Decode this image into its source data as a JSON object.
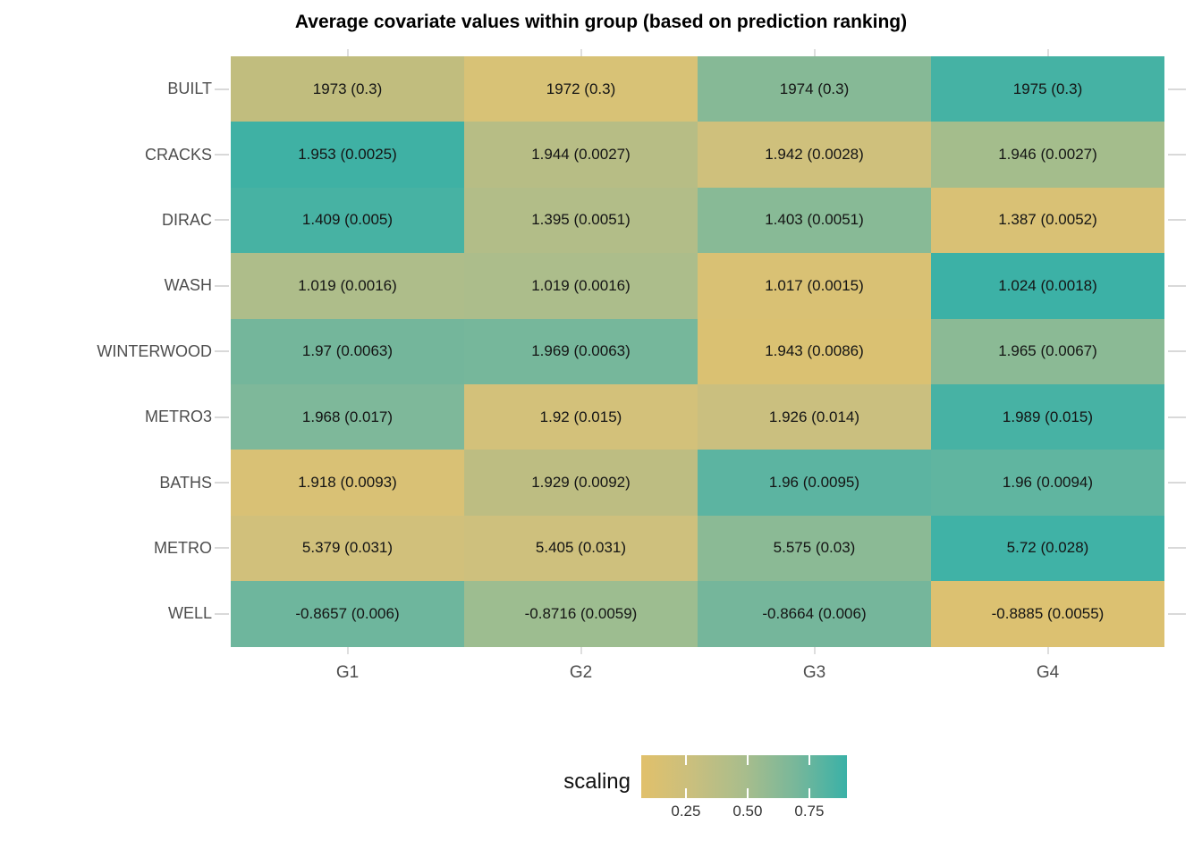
{
  "chart_data": {
    "type": "heatmap",
    "title": "Average covariate values within group (based on prediction ranking)",
    "x_categories": [
      "G1",
      "G2",
      "G3",
      "G4"
    ],
    "y_categories": [
      "BUILT",
      "CRACKS",
      "DIRAC",
      "WASH",
      "WINTERWOOD",
      "METRO3",
      "BATHS",
      "METRO",
      "WELL"
    ],
    "cell_label_format": "mean (se)",
    "rows": [
      {
        "name": "BUILT",
        "cells": [
          {
            "label": "1973 (0.3)",
            "color": "#c1bd7e"
          },
          {
            "label": "1972 (0.3)",
            "color": "#d8c276"
          },
          {
            "label": "1974 (0.3)",
            "color": "#86b996"
          },
          {
            "label": "1975 (0.3)",
            "color": "#45b2a4"
          }
        ]
      },
      {
        "name": "CRACKS",
        "cells": [
          {
            "label": "1.953 (0.0025)",
            "color": "#3fb1a4"
          },
          {
            "label": "1.944 (0.0027)",
            "color": "#b7bd85"
          },
          {
            "label": "1.942 (0.0028)",
            "color": "#cfc07c"
          },
          {
            "label": "1.946 (0.0027)",
            "color": "#a4bd8c"
          }
        ]
      },
      {
        "name": "DIRAC",
        "cells": [
          {
            "label": "1.409 (0.005)",
            "color": "#47b2a3"
          },
          {
            "label": "1.395 (0.0051)",
            "color": "#b2bd88"
          },
          {
            "label": "1.403 (0.0051)",
            "color": "#88ba96"
          },
          {
            "label": "1.387 (0.0052)",
            "color": "#d9c175"
          }
        ]
      },
      {
        "name": "WASH",
        "cells": [
          {
            "label": "1.019 (0.0016)",
            "color": "#aebd8a"
          },
          {
            "label": "1.019 (0.0016)",
            "color": "#acbd8b"
          },
          {
            "label": "1.017 (0.0015)",
            "color": "#d9c174"
          },
          {
            "label": "1.024 (0.0018)",
            "color": "#3cb1a6"
          }
        ]
      },
      {
        "name": "WINTERWOOD",
        "cells": [
          {
            "label": "1.97 (0.0063)",
            "color": "#74b69b"
          },
          {
            "label": "1.969 (0.0063)",
            "color": "#76b79b"
          },
          {
            "label": "1.943 (0.0086)",
            "color": "#dac172"
          },
          {
            "label": "1.965 (0.0067)",
            "color": "#8bba95"
          }
        ]
      },
      {
        "name": "METRO3",
        "cells": [
          {
            "label": "1.968 (0.017)",
            "color": "#7eb89a"
          },
          {
            "label": "1.92 (0.015)",
            "color": "#d3c17a"
          },
          {
            "label": "1.926 (0.014)",
            "color": "#cabf7f"
          },
          {
            "label": "1.989 (0.015)",
            "color": "#47b2a4"
          }
        ]
      },
      {
        "name": "BATHS",
        "cells": [
          {
            "label": "1.918 (0.0093)",
            "color": "#d9c175"
          },
          {
            "label": "1.929 (0.0092)",
            "color": "#bdbd82"
          },
          {
            "label": "1.96 (0.0095)",
            "color": "#5cb4a1"
          },
          {
            "label": "1.96 (0.0094)",
            "color": "#60b5a0"
          }
        ]
      },
      {
        "name": "METRO",
        "cells": [
          {
            "label": "5.379 (0.031)",
            "color": "#d1c07b"
          },
          {
            "label": "5.405 (0.031)",
            "color": "#cec07d"
          },
          {
            "label": "5.575 (0.03)",
            "color": "#8bba95"
          },
          {
            "label": "5.72 (0.028)",
            "color": "#40b2a6"
          }
        ]
      },
      {
        "name": "WELL",
        "cells": [
          {
            "label": "-0.8657 (0.006)",
            "color": "#6eb69d"
          },
          {
            "label": "-0.8716 (0.0059)",
            "color": "#9dbd90"
          },
          {
            "label": "-0.8664 (0.006)",
            "color": "#75b69b"
          },
          {
            "label": "-0.8885 (0.0055)",
            "color": "#dcc171"
          }
        ]
      }
    ],
    "legend": {
      "title": "scaling",
      "ticks": [
        "0.25",
        "0.50",
        "0.75"
      ],
      "tick_positions": [
        0.217,
        0.517,
        0.817
      ],
      "gradient": [
        "#e1c06b",
        "#c9bf7e",
        "#a9bd8c",
        "#78b79a",
        "#3ab1a7"
      ]
    }
  }
}
